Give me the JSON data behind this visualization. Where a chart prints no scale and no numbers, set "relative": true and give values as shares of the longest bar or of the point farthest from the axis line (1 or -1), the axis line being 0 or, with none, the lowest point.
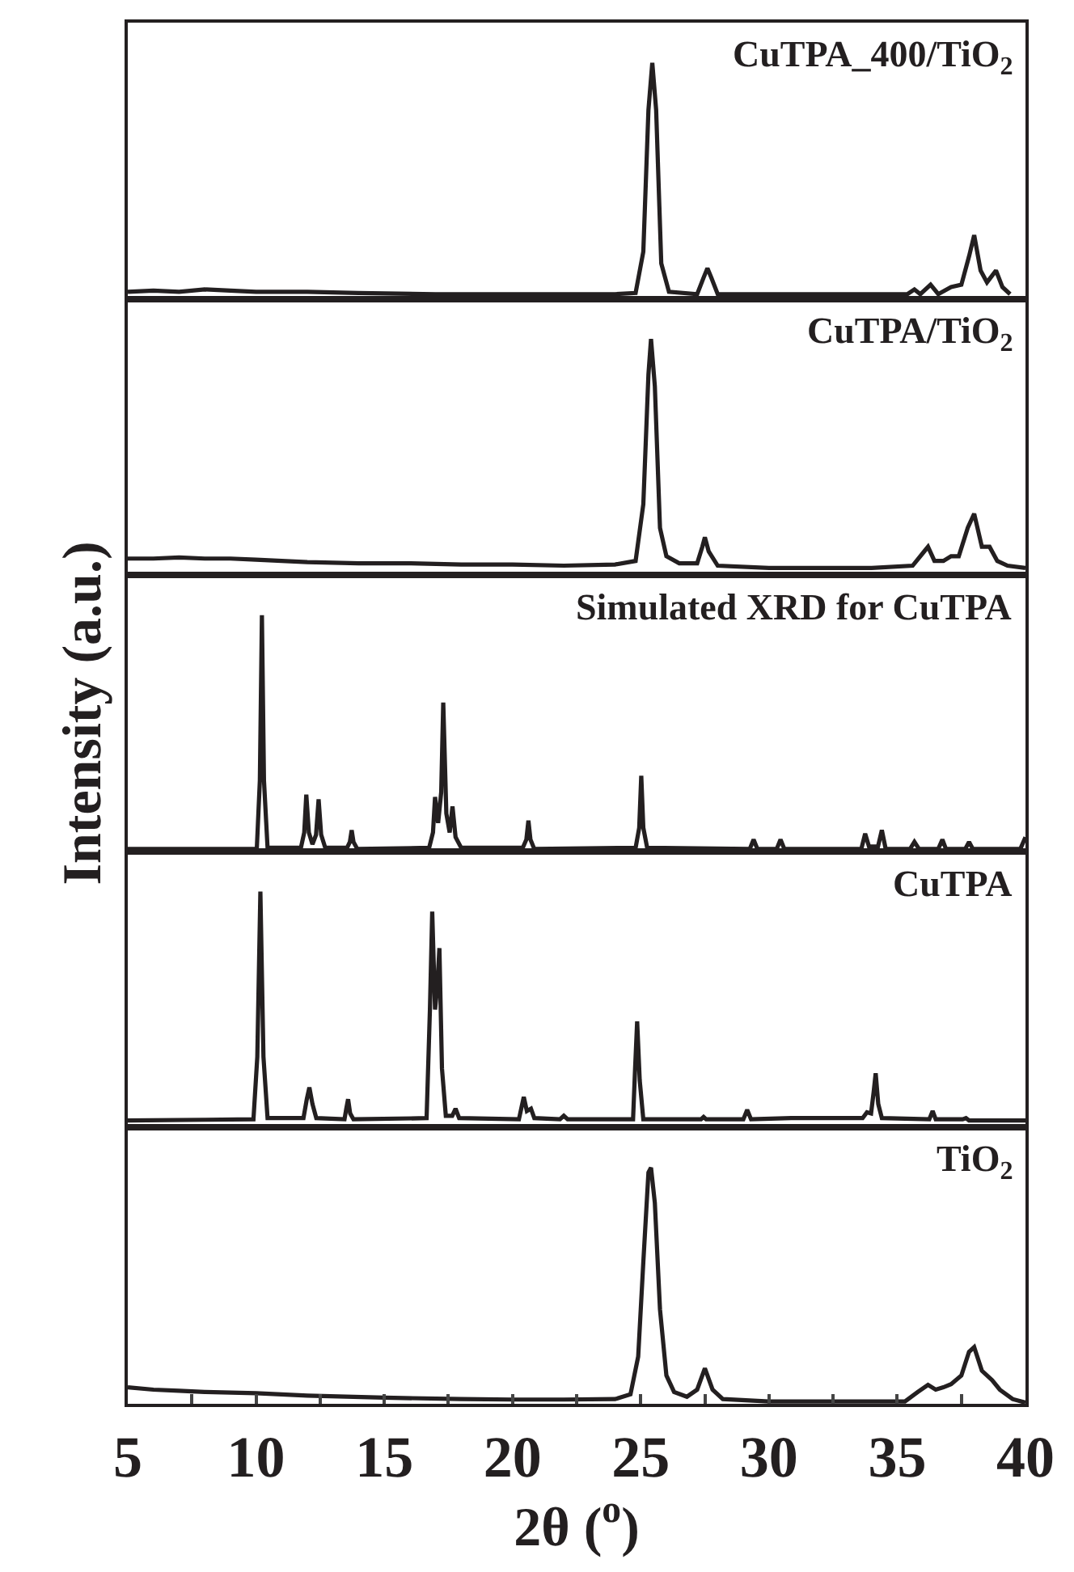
{
  "chart_data": [
    {
      "type": "line",
      "relative": true,
      "title": "CuTPA_400/TiO$_{2}$",
      "xlim": [
        5,
        40
      ],
      "tick_labels": false,
      "grid": false,
      "x": [
        5,
        6,
        7,
        8,
        9,
        10,
        12,
        14,
        17,
        20,
        22,
        24,
        24.8,
        25.1,
        25.3,
        25.45,
        25.6,
        25.8,
        26.1,
        27.2,
        27.45,
        27.6,
        27.75,
        28.0,
        35.4,
        35.67,
        35.9,
        36.3,
        36.6,
        37.1,
        37.5,
        37.8,
        38.0,
        38.25,
        38.5,
        38.85,
        39.1,
        39.4
      ],
      "series": [
        {
          "color": "#231f20",
          "values": [
            0.03,
            0.035,
            0.03,
            0.04,
            0.035,
            0.03,
            0.03,
            0.025,
            0.02,
            0.02,
            0.02,
            0.02,
            0.025,
            0.2,
            0.8,
            1.0,
            0.8,
            0.15,
            0.03,
            0.02,
            0.09,
            0.13,
            0.09,
            0.02,
            0.02,
            0.04,
            0.02,
            0.06,
            0.02,
            0.05,
            0.06,
            0.18,
            0.27,
            0.12,
            0.07,
            0.12,
            0.05,
            0.02
          ]
        }
      ]
    },
    {
      "type": "line",
      "relative": true,
      "title": "CuTPA/TiO$_{2}$",
      "xlim": [
        5,
        40
      ],
      "tick_labels": false,
      "grid": false,
      "x": [
        5,
        6,
        7,
        8,
        9,
        10,
        12,
        14,
        16,
        18,
        20,
        22,
        24,
        24.8,
        25.1,
        25.3,
        25.4,
        25.55,
        25.75,
        26.0,
        26.5,
        27.2,
        27.4,
        27.5,
        27.65,
        28,
        30,
        32,
        34,
        35.6,
        36.05,
        36.2,
        36.45,
        36.8,
        37.1,
        37.4,
        37.75,
        38.0,
        38.3,
        38.6,
        38.9,
        39.3,
        40
      ],
      "series": [
        {
          "color": "#231f20",
          "values": [
            0.07,
            0.07,
            0.075,
            0.07,
            0.07,
            0.065,
            0.055,
            0.05,
            0.05,
            0.045,
            0.045,
            0.04,
            0.045,
            0.06,
            0.3,
            0.85,
            1.0,
            0.8,
            0.2,
            0.08,
            0.05,
            0.05,
            0.12,
            0.16,
            0.1,
            0.04,
            0.03,
            0.03,
            0.03,
            0.04,
            0.1,
            0.12,
            0.06,
            0.06,
            0.08,
            0.08,
            0.2,
            0.26,
            0.12,
            0.12,
            0.06,
            0.04,
            0.03
          ]
        }
      ]
    },
    {
      "type": "line",
      "relative": true,
      "title": "Simulated XRD for CuTPA",
      "ylabel": "Intensity (a.u.)",
      "xlim": [
        5,
        40
      ],
      "tick_labels": false,
      "grid": false,
      "x": [
        5,
        9.8,
        10.03,
        10.15,
        10.23,
        10.31,
        10.45,
        11.75,
        11.88,
        11.96,
        12.06,
        12.2,
        12.34,
        12.44,
        12.54,
        12.7,
        13.55,
        13.66,
        13.73,
        13.8,
        13.95,
        16.75,
        16.9,
        16.98,
        17.1,
        17.22,
        17.3,
        17.42,
        17.55,
        17.66,
        17.78,
        18.0,
        20.4,
        20.54,
        20.62,
        20.7,
        20.85,
        24.8,
        24.94,
        25.02,
        25.1,
        25.25,
        29.25,
        29.4,
        29.55,
        30.3,
        30.45,
        30.6,
        33.6,
        33.75,
        33.9,
        34.25,
        34.4,
        34.55,
        35.5,
        35.67,
        35.85,
        36.6,
        36.76,
        36.9,
        37.65,
        37.8,
        37.95,
        39.8,
        40
      ],
      "series": [
        {
          "color": "#231f20",
          "values": [
            0.01,
            0.01,
            0.01,
            0.3,
            1.0,
            0.3,
            0.015,
            0.015,
            0.08,
            0.24,
            0.08,
            0.03,
            0.07,
            0.22,
            0.07,
            0.015,
            0.015,
            0.04,
            0.09,
            0.04,
            0.01,
            0.015,
            0.08,
            0.23,
            0.12,
            0.25,
            0.63,
            0.16,
            0.08,
            0.19,
            0.06,
            0.015,
            0.015,
            0.05,
            0.13,
            0.05,
            0.01,
            0.015,
            0.1,
            0.32,
            0.1,
            0.015,
            0.01,
            0.05,
            0.01,
            0.01,
            0.05,
            0.01,
            0.01,
            0.075,
            0.02,
            0.02,
            0.09,
            0.01,
            0.01,
            0.04,
            0.01,
            0.01,
            0.05,
            0.01,
            0.01,
            0.04,
            0.01,
            0.01,
            0.06
          ]
        }
      ]
    },
    {
      "type": "line",
      "relative": true,
      "title": "CuTPA",
      "xlim": [
        5,
        40
      ],
      "tick_labels": false,
      "grid": false,
      "x": [
        5,
        8,
        9.9,
        10.05,
        10.17,
        10.29,
        10.45,
        11.85,
        11.98,
        12.08,
        12.2,
        12.35,
        13.45,
        13.52,
        13.59,
        13.67,
        13.8,
        16.65,
        16.78,
        16.87,
        16.98,
        17.07,
        17.15,
        17.25,
        17.4,
        17.65,
        17.78,
        17.92,
        20.25,
        20.36,
        20.44,
        20.56,
        20.72,
        20.85,
        21.85,
        22.0,
        22.15,
        24.7,
        24.78,
        24.86,
        24.96,
        25.1,
        27.35,
        27.45,
        27.55,
        29.0,
        29.15,
        29.3,
        30.87,
        33.65,
        33.82,
        33.98,
        34.08,
        34.16,
        34.26,
        34.4,
        36.25,
        36.38,
        36.5,
        37.55,
        37.68,
        37.8,
        39.5,
        40
      ],
      "series": [
        {
          "color": "#231f20",
          "values": [
            0.03,
            0.033,
            0.035,
            0.3,
            1.0,
            0.3,
            0.04,
            0.04,
            0.12,
            0.17,
            0.1,
            0.04,
            0.035,
            0.08,
            0.12,
            0.06,
            0.035,
            0.04,
            0.5,
            0.915,
            0.5,
            0.6,
            0.76,
            0.25,
            0.05,
            0.05,
            0.08,
            0.04,
            0.035,
            0.09,
            0.13,
            0.07,
            0.08,
            0.04,
            0.035,
            0.05,
            0.035,
            0.035,
            0.25,
            0.45,
            0.2,
            0.035,
            0.035,
            0.045,
            0.035,
            0.035,
            0.075,
            0.035,
            0.04,
            0.04,
            0.065,
            0.06,
            0.15,
            0.23,
            0.1,
            0.04,
            0.035,
            0.07,
            0.035,
            0.035,
            0.04,
            0.03,
            0.03,
            0.03
          ]
        }
      ]
    },
    {
      "type": "line",
      "relative": true,
      "title": "TiO$_{2}$",
      "xlabel": "2θ ($^{o}$)",
      "xlim": [
        5,
        40
      ],
      "tick_labels": "x",
      "grid": false,
      "xticks": [
        5,
        {
          "value": 7.5,
          "label": null
        },
        10,
        {
          "value": 12.5,
          "label": null
        },
        15,
        {
          "value": 17.5,
          "label": null
        },
        20,
        {
          "value": 22.5,
          "label": null
        },
        25,
        {
          "value": 27.5,
          "label": null
        },
        30,
        {
          "value": 32.5,
          "label": null
        },
        35,
        {
          "value": 37.5,
          "label": null
        },
        40
      ],
      "x": [
        5,
        6,
        7,
        8,
        10,
        12,
        15,
        18,
        20,
        22,
        24,
        24.6,
        24.9,
        25.1,
        25.3,
        25.4,
        25.55,
        25.75,
        26.0,
        26.3,
        26.8,
        27.2,
        27.5,
        27.8,
        28.2,
        30,
        32,
        34,
        35.3,
        35.8,
        36.2,
        36.5,
        36.8,
        37.1,
        37.5,
        37.8,
        38.0,
        38.3,
        38.7,
        39.0,
        39.5,
        40
      ],
      "series": [
        {
          "color": "#231f20",
          "values": [
            0.07,
            0.06,
            0.055,
            0.05,
            0.045,
            0.035,
            0.026,
            0.02,
            0.018,
            0.018,
            0.02,
            0.04,
            0.2,
            0.6,
            0.98,
            1.0,
            0.85,
            0.4,
            0.12,
            0.05,
            0.03,
            0.06,
            0.15,
            0.06,
            0.02,
            0.01,
            0.01,
            0.01,
            0.01,
            0.05,
            0.08,
            0.06,
            0.07,
            0.083,
            0.12,
            0.22,
            0.24,
            0.14,
            0.1,
            0.06,
            0.02,
            0.005
          ]
        }
      ]
    }
  ]
}
